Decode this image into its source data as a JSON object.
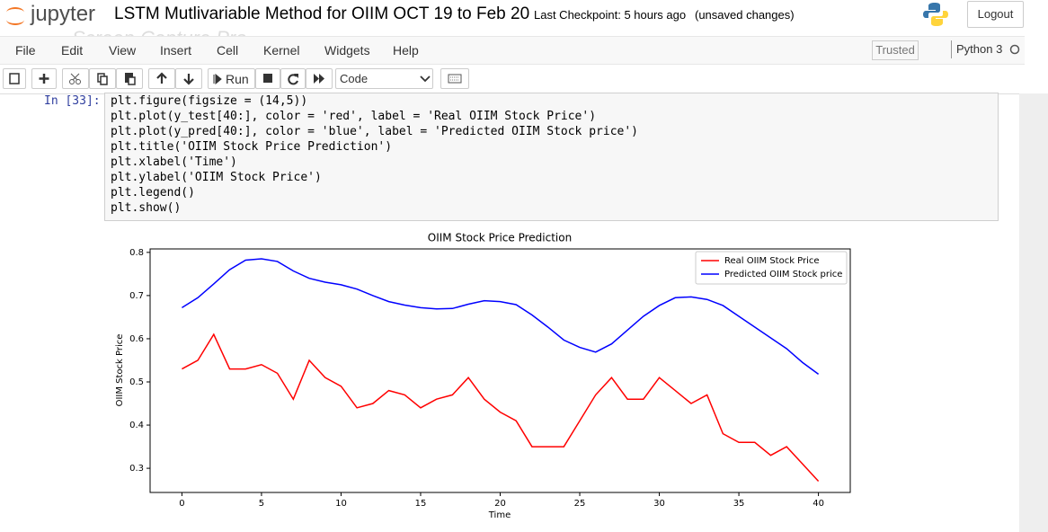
{
  "header": {
    "logo_text": "jupyter",
    "title": "LSTM Mutlivariable Method for OIIM OCT 19 to Feb 20",
    "checkpoint": "Last Checkpoint: 5 hours ago",
    "status": "(unsaved changes)",
    "logout": "Logout",
    "watermark": "Screen Capture Pro"
  },
  "menu": {
    "items": [
      "File",
      "Edit",
      "View",
      "Insert",
      "Cell",
      "Kernel",
      "Widgets",
      "Help"
    ],
    "trusted": "Trusted",
    "kernel": "Python 3"
  },
  "toolbar": {
    "run": "Run",
    "cell_type": "Code"
  },
  "cell": {
    "prompt": "In [33]:",
    "lines": [
      "plt.figure(figsize = (14,5))",
      "plt.plot(y_test[40:], color = 'red', label = 'Real OIIM Stock Price')",
      "plt.plot(y_pred[40:], color = 'blue', label = 'Predicted OIIM Stock price')",
      "plt.title('OIIM Stock Price Prediction')",
      "plt.xlabel('Time')",
      "plt.ylabel('OIIM Stock Price')",
      "plt.legend()",
      "plt.show()"
    ]
  },
  "chart_data": {
    "type": "line",
    "title": "OIIM Stock Price Prediction",
    "x_label": "Time",
    "y_label": "OIIM Stock Price",
    "x": [
      0,
      1,
      2,
      3,
      4,
      5,
      6,
      7,
      8,
      9,
      10,
      11,
      12,
      13,
      14,
      15,
      16,
      17,
      18,
      19,
      20,
      21,
      22,
      23,
      24,
      25,
      26,
      27,
      28,
      29,
      30,
      31,
      32,
      33,
      34,
      35,
      36,
      37,
      38,
      39,
      40
    ],
    "series": [
      {
        "name": "Real OIIM Stock Price",
        "color": "#ff0000",
        "values": [
          0.53,
          0.55,
          0.61,
          0.53,
          0.53,
          0.54,
          0.52,
          0.46,
          0.55,
          0.51,
          0.49,
          0.44,
          0.45,
          0.48,
          0.47,
          0.44,
          0.46,
          0.47,
          0.51,
          0.46,
          0.43,
          0.41,
          0.35,
          0.35,
          0.35,
          0.41,
          0.47,
          0.51,
          0.46,
          0.46,
          0.51,
          0.48,
          0.45,
          0.47,
          0.38,
          0.36,
          0.36,
          0.33,
          0.35,
          0.31,
          0.27
        ]
      },
      {
        "name": "Predicted OIIM Stock price",
        "color": "#0000ff",
        "values": [
          0.672,
          0.695,
          0.727,
          0.76,
          0.782,
          0.785,
          0.779,
          0.757,
          0.74,
          0.731,
          0.725,
          0.715,
          0.7,
          0.686,
          0.678,
          0.672,
          0.669,
          0.67,
          0.68,
          0.688,
          0.686,
          0.679,
          0.655,
          0.627,
          0.597,
          0.58,
          0.569,
          0.588,
          0.62,
          0.652,
          0.677,
          0.695,
          0.697,
          0.691,
          0.677,
          0.652,
          0.627,
          0.602,
          0.577,
          0.545,
          0.518
        ]
      }
    ],
    "xlim": [
      -2,
      42
    ],
    "xticks": [
      0,
      5,
      10,
      15,
      20,
      25,
      30,
      35,
      40
    ],
    "ylim": [
      0.244,
      0.808
    ],
    "yticks": [
      0.3,
      0.4,
      0.5,
      0.6,
      0.7,
      0.8
    ],
    "grid": false,
    "legend": "upper right"
  }
}
